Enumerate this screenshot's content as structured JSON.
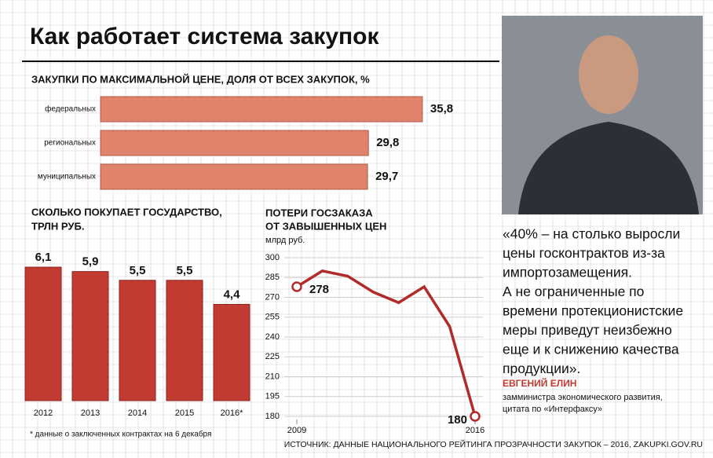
{
  "title": "Как работает система закупок",
  "chart_data": [
    {
      "type": "hbar",
      "title": "ЗАКУПКИ ПО МАКСИМАЛЬНОЙ ЦЕНЕ, ДОЛЯ ОТ ВСЕХ ЗАКУПОК, %",
      "categories": [
        "федеральных",
        "региональных",
        "муниципальных"
      ],
      "values": [
        35.8,
        29.8,
        29.7
      ],
      "value_labels": [
        "35,8",
        "29,8",
        "29,7"
      ],
      "color": "#e0836d",
      "xlim": [
        0,
        40
      ]
    },
    {
      "type": "bar",
      "title": [
        "СКОЛЬКО ПОКУПАЕТ ГОСУДАРСТВО,",
        "ТРЛН РУБ."
      ],
      "categories": [
        "2012",
        "2013",
        "2014",
        "2015",
        "2016*"
      ],
      "values": [
        6.1,
        5.9,
        5.5,
        5.5,
        4.4
      ],
      "value_labels": [
        "6,1",
        "5,9",
        "5,5",
        "5,5",
        "4,4"
      ],
      "color": "#c23b32",
      "ylim": [
        0,
        7
      ],
      "note": "* данные о заключенных контрактах на 6 декабря"
    },
    {
      "type": "line",
      "title": [
        "ПОТЕРИ ГОСЗАКАЗА",
        "ОТ ЗАВЫШЕННЫХ ЦЕН"
      ],
      "ylabel": "млрд руб.",
      "x": [
        2009,
        2010,
        2011,
        2012,
        2013,
        2014,
        2015,
        2016
      ],
      "values": [
        278,
        290,
        286,
        274,
        266,
        278,
        248,
        180
      ],
      "color": "#b22a2a",
      "xlim": [
        2009,
        2016
      ],
      "xticks": [
        2009,
        2016
      ],
      "ylim": [
        180,
        300
      ],
      "yticks": [
        180,
        195,
        210,
        225,
        240,
        255,
        270,
        285,
        300
      ],
      "grid": true
    }
  ],
  "quote": {
    "lines": [
      "«40% – на столько выросли",
      "цены госконтрактов из-за",
      "импортозамещения.",
      "А не ограниченные по",
      "времени протекционистские",
      "меры приведут неизбежно",
      "еще и к снижению качества",
      "продукции»."
    ],
    "author": "ЕВГЕНИЙ ЕЛИН",
    "position": [
      "замминистра экономического развития,",
      "цитата по «Интерфаксу»"
    ]
  },
  "source": "ИСТОЧНИК: ДАННЫЕ НАЦИОНАЛЬНОГО РЕЙТИНГА ПРОЗРАЧНОСТИ ЗАКУПОК – 2016, ZAKUPKI.GOV.RU"
}
